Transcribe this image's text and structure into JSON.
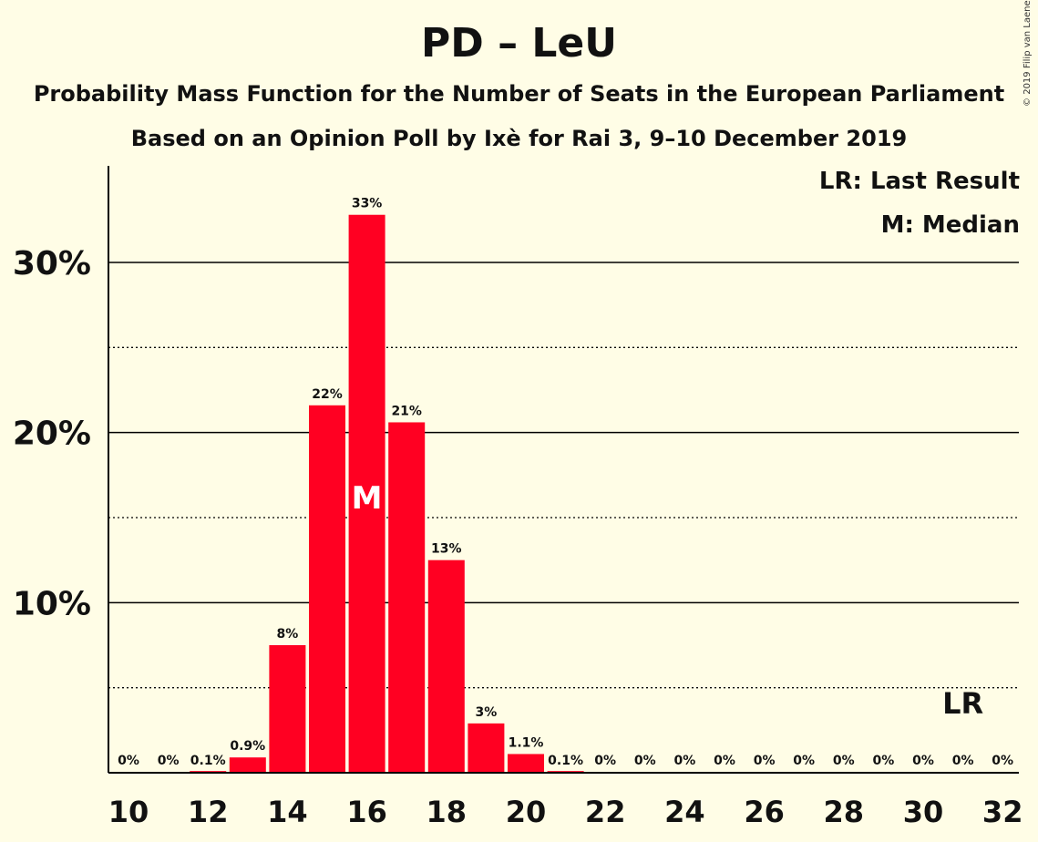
{
  "title": "PD – LeU",
  "subtitle1": "Probability Mass Function for the Number of Seats in the European Parliament",
  "subtitle2": "Based on an Opinion Poll by Ixè for Rai 3, 9–10 December 2019",
  "copyright": "© 2019 Filip van Laenen",
  "legend": {
    "last_result": "LR: Last Result",
    "median": "M: Median"
  },
  "colors": {
    "bar": "#FF0022",
    "background": "#FFFDE6"
  },
  "chart_data": {
    "type": "bar",
    "x": [
      10,
      11,
      12,
      13,
      14,
      15,
      16,
      17,
      18,
      19,
      20,
      21,
      22,
      23,
      24,
      25,
      26,
      27,
      28,
      29,
      30,
      31,
      32
    ],
    "values": [
      0,
      0,
      0.1,
      0.9,
      7.5,
      21.6,
      32.8,
      20.6,
      12.5,
      2.9,
      1.1,
      0.1,
      0,
      0,
      0,
      0,
      0,
      0,
      0,
      0,
      0,
      0,
      0
    ],
    "labels": [
      "0%",
      "0%",
      "0.1%",
      "0.9%",
      "8%",
      "22%",
      "33%",
      "21%",
      "13%",
      "3%",
      "1.1%",
      "0.1%",
      "0%",
      "0%",
      "0%",
      "0%",
      "0%",
      "0%",
      "0%",
      "0%",
      "0%",
      "0%",
      "0%"
    ],
    "x_tick_labels": [
      "10",
      "12",
      "14",
      "16",
      "18",
      "20",
      "22",
      "24",
      "26",
      "28",
      "30",
      "32"
    ],
    "y_tick_labels": [
      "10%",
      "20%",
      "30%"
    ],
    "ylim": [
      0,
      35.5
    ],
    "grid": "major solid at 10/20/30, dotted at 5/15/25",
    "median": 16,
    "median_label": "M",
    "last_result": 31,
    "last_result_label": "LR"
  }
}
